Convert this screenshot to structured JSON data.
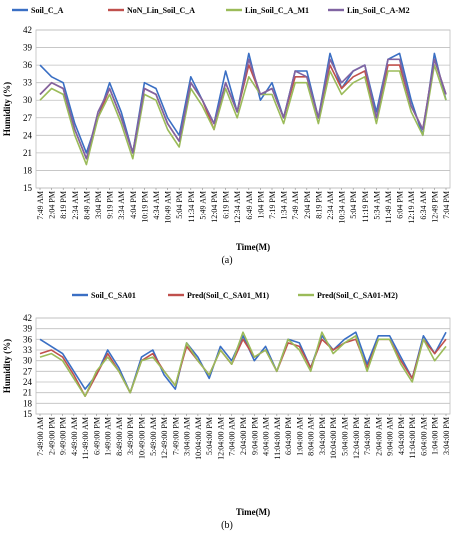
{
  "chart_data": [
    {
      "type": "line",
      "caption": "(a)",
      "xlabel": "Time(M)",
      "ylabel": "Humidity (%)",
      "ylim": [
        15,
        42
      ],
      "yticks": [
        15,
        18,
        21,
        24,
        27,
        30,
        33,
        36,
        39,
        42
      ],
      "grid": true,
      "legend": "top",
      "categories": [
        "7:49 AM",
        "2:04 PM",
        "8:19 PM",
        "2:34 AM",
        "8:49 AM",
        "3:04 PM",
        "9:19 PM",
        "3:34 AM",
        "4:04 PM",
        "10:19 PM",
        "4:34 AM",
        "10:49 AM",
        "5:04 PM",
        "11:34 PM",
        "5:49 AM",
        "12:04 PM",
        "6:19 PM",
        "12:34 AM",
        "6:49 AM",
        "1:04 PM",
        "7:19 PM",
        "1:34 AM",
        "7:49 AM",
        "2:04 PM",
        "8:19 PM",
        "2:34 AM",
        "10:34 AM",
        "5:04 PM",
        "11:19 PM",
        "5:34 AM",
        "11:49 AM",
        "6:04 PM",
        "12:19 AM",
        "6:34 AM",
        "12:49 PM",
        "7:04 PM"
      ],
      "series": [
        {
          "name": "Soil_C_A",
          "color": "#3a6fc4",
          "values": [
            36,
            34,
            33,
            26,
            21,
            27,
            33,
            28,
            21,
            33,
            32,
            27,
            24,
            34,
            30,
            26,
            35,
            28,
            38,
            30,
            33,
            27,
            35,
            35,
            27,
            38,
            32,
            35,
            36,
            28,
            37,
            38,
            30,
            24,
            38,
            30
          ]
        },
        {
          "name": "NoN_Lin_Soil_C_A",
          "color": "#c0504d",
          "values": [
            31,
            33,
            32,
            25,
            20,
            27,
            32,
            27,
            21,
            32,
            31,
            26,
            23,
            33,
            30,
            25,
            33,
            28,
            36,
            31,
            32,
            27,
            34,
            34,
            27,
            36,
            32,
            34,
            35,
            27,
            36,
            36,
            29,
            25,
            37,
            31
          ]
        },
        {
          "name": "Lin_Soil_C_A_M1",
          "color": "#9bbb59",
          "values": [
            30,
            32,
            31,
            24,
            19,
            27,
            31,
            26,
            20,
            31,
            30,
            25,
            22,
            32,
            29,
            25,
            32,
            27,
            34,
            31,
            31,
            26,
            33,
            33,
            26,
            35,
            31,
            33,
            34,
            26,
            35,
            35,
            28,
            24,
            36,
            30
          ]
        },
        {
          "name": "Lin_Soil_C_A-M2",
          "color": "#8064a2",
          "values": [
            31,
            33,
            32,
            25,
            20,
            28,
            32,
            27,
            21,
            32,
            31,
            26,
            23,
            33,
            30,
            26,
            33,
            28,
            37,
            31,
            32,
            27,
            35,
            34,
            27,
            37,
            33,
            35,
            36,
            27,
            37,
            37,
            29,
            25,
            37,
            31
          ]
        }
      ]
    },
    {
      "type": "line",
      "caption": "(b)",
      "xlabel": "Time(M)",
      "ylabel": "Humidity (%)",
      "ylim": [
        15,
        42
      ],
      "yticks": [
        15,
        18,
        21,
        24,
        27,
        30,
        33,
        36,
        39,
        42
      ],
      "grid": true,
      "legend": "top",
      "categories": [
        "7:49:00 AM",
        "2:49:00 PM",
        "9:49:00 PM",
        "4:49:00 AM",
        "11:49:00 AM",
        "6:49:00 PM",
        "1:49:00 AM",
        "8:49:00 AM",
        "3:49:00 PM",
        "10:49:00 PM",
        "5:49:00 AM",
        "12:49:00 PM",
        "7:49:00 PM",
        "3:04:00 AM",
        "10:04:00 AM",
        "5:04:00 PM",
        "12:04:00 AM",
        "7:04:00 AM",
        "2:04:00 PM",
        "9:04:00 PM",
        "4:04:00 AM",
        "11:04:00 AM",
        "6:04:00 PM",
        "1:04:00 AM",
        "8:04:00 AM",
        "3:04:00 PM",
        "10:04:00 PM",
        "5:04:00 AM",
        "12:04:00 PM",
        "7:04:00 PM",
        "2:04:00 AM",
        "9:04:00 AM",
        "4:04:00 PM",
        "11:04:00 PM",
        "6:04:00 AM",
        "1:04:00 PM",
        "3:04:00 PM"
      ],
      "series": [
        {
          "name": "Soil_C_SA01",
          "color": "#3a6fc4",
          "values": [
            36,
            34,
            32,
            27,
            22,
            26,
            33,
            28,
            21,
            31,
            33,
            26,
            22,
            35,
            31,
            25,
            34,
            30,
            37,
            30,
            34,
            27,
            36,
            35,
            28,
            37,
            33,
            36,
            38,
            29,
            37,
            37,
            31,
            25,
            37,
            32,
            38
          ]
        },
        {
          "name": "Pred(Soil_C_SA01_M1)",
          "color": "#c0504d",
          "values": [
            32,
            33,
            31,
            26,
            20,
            26,
            32,
            27,
            21,
            30,
            32,
            27,
            23,
            34,
            30,
            26,
            33,
            29,
            36,
            31,
            33,
            27,
            35,
            34,
            28,
            36,
            33,
            35,
            36,
            28,
            36,
            36,
            30,
            25,
            36,
            32,
            36
          ]
        },
        {
          "name": "Pred(Soil_C_SA01-M2)",
          "color": "#9bbb59",
          "values": [
            31,
            32,
            30,
            25,
            20,
            27,
            31,
            27,
            21,
            30,
            31,
            27,
            23,
            35,
            30,
            26,
            33,
            29,
            38,
            31,
            33,
            27,
            36,
            33,
            27,
            38,
            32,
            35,
            37,
            27,
            36,
            36,
            29,
            24,
            36,
            30,
            34
          ]
        }
      ]
    }
  ]
}
